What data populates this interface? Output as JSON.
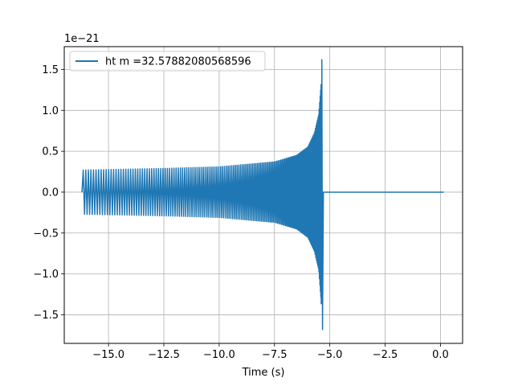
{
  "chart_data": {
    "type": "line",
    "title": "",
    "xlabel": "Time (s)",
    "ylabel": "",
    "y_offset_label": "1e−21",
    "xlim": [
      -17.0,
      1.0
    ],
    "ylim": [
      -1.85,
      1.78
    ],
    "x_ticks": [
      -15.0,
      -12.5,
      -10.0,
      -7.5,
      -5.0,
      -2.5,
      0.0
    ],
    "x_tick_labels": [
      "−15.0",
      "−12.5",
      "−10.0",
      "−7.5",
      "−5.0",
      "−2.5",
      "0.0"
    ],
    "y_ticks": [
      -1.5,
      -1.0,
      -0.5,
      0.0,
      0.5,
      1.0,
      1.5
    ],
    "y_tick_labels": [
      "−1.5",
      "−1.0",
      "−0.5",
      "0.0",
      "0.5",
      "1.0",
      "1.5"
    ],
    "grid": true,
    "legend_position": "upper-left",
    "series": [
      {
        "name": "ht m =32.57882080568596",
        "color": "#1f77b4",
        "waveform": {
          "chirp_start_x": -16.2,
          "merger_x": -5.33,
          "end_x": 0.15,
          "amplitude_start": 0.27,
          "peak_max": 1.62,
          "peak_min": -1.68,
          "post_merger_value": 0.0
        },
        "envelope_points": [
          {
            "x": -16.2,
            "upper": 0.27,
            "lower": -0.27
          },
          {
            "x": -12.5,
            "upper": 0.29,
            "lower": -0.29
          },
          {
            "x": -10.0,
            "upper": 0.31,
            "lower": -0.31
          },
          {
            "x": -7.5,
            "upper": 0.37,
            "lower": -0.37
          },
          {
            "x": -6.5,
            "upper": 0.45,
            "lower": -0.45
          },
          {
            "x": -6.0,
            "upper": 0.55,
            "lower": -0.55
          },
          {
            "x": -5.7,
            "upper": 0.72,
            "lower": -0.72
          },
          {
            "x": -5.5,
            "upper": 0.95,
            "lower": -0.95
          },
          {
            "x": -5.4,
            "upper": 1.3,
            "lower": -1.3
          },
          {
            "x": -5.33,
            "upper": 1.62,
            "lower": -1.68
          }
        ]
      }
    ]
  }
}
